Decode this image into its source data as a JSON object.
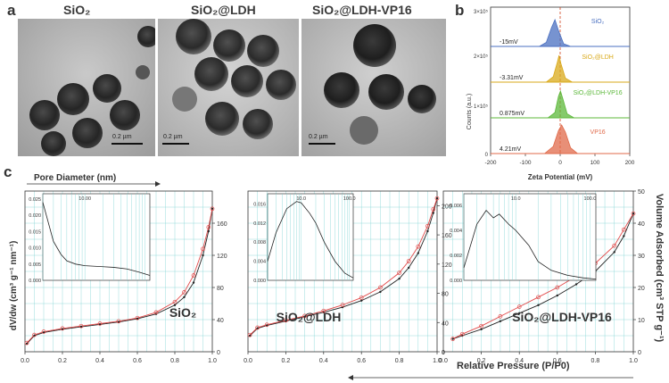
{
  "panels": {
    "a": "a",
    "b": "b",
    "c": "c"
  },
  "tem": [
    {
      "title": "SiO₂",
      "scale": "0.2 µm"
    },
    {
      "title": "SiO₂@LDH",
      "scale": "0.2 µm"
    },
    {
      "title": "SiO₂@LDH-VP16",
      "scale": "0.2 µm"
    }
  ],
  "zeta": {
    "ylabel": "Counts (a.u.)",
    "xlabel": "Zeta Potential (mV)",
    "yticks": [
      "3×10⁵",
      "2×10⁵",
      "1×10⁵",
      "0"
    ],
    "xticks": [
      "-200",
      "-100",
      "0",
      "100",
      "200"
    ]
  },
  "colors": {
    "sio2": "#4a6fc0",
    "ldh": "#d9a91a",
    "vp16ldh": "#5cb83a",
    "vp16": "#e06a4a",
    "grid": "#7ed3d3",
    "ads": "#222222",
    "des": "#e24a4a"
  },
  "bet_labels": {
    "pore_diameter": "Pore Diameter (nm)",
    "dvdw": "dV/dw (cm³ g⁻¹ nm⁻¹)",
    "volume_adsorbed": "Volume Adsorbed (cm³ STP g⁻¹)",
    "relative_pressure": "Relative Pressure (P/P0)"
  },
  "bet": [
    {
      "name": "SiO₂",
      "inset_yticks": [
        "0.025",
        "0.020",
        "0.015",
        "0.010",
        "0.005",
        "0.000"
      ],
      "inset_xtick": [
        "10.00"
      ],
      "right_ticks": [
        "0",
        "40",
        "80",
        "120",
        "160"
      ],
      "xticks": [
        "0.0",
        "0.2",
        "0.4",
        "0.6",
        "0.8",
        "1.0"
      ]
    },
    {
      "name": "SiO₂@LDH",
      "inset_yticks": [
        "0.016",
        "0.012",
        "0.008",
        "0.004",
        "0.000"
      ],
      "inset_xtick": [
        "10.0",
        "100.0"
      ],
      "right_ticks": [
        "0",
        "40",
        "80",
        "120",
        "160",
        "200"
      ],
      "xticks": [
        "0.0",
        "0.2",
        "0.4",
        "0.6",
        "0.8",
        "1.0"
      ]
    },
    {
      "name": "SiO₂@LDH-VP16",
      "inset_yticks": [
        "0.006",
        "0.004",
        "0.002",
        "0.000"
      ],
      "inset_xtick": [
        "10.0",
        "100.0"
      ],
      "right_ticks": [
        "0",
        "10",
        "20",
        "30",
        "40",
        "50"
      ],
      "xticks": [
        "0.0",
        "0.2",
        "0.4",
        "0.6",
        "0.8",
        "1.0"
      ]
    }
  ],
  "chart_data": [
    {
      "type": "area",
      "xlabel": "Zeta Potential (mV)",
      "ylabel": "Counts (a.u.)",
      "xlim": [
        -200,
        200
      ],
      "series": [
        {
          "name": "SiO₂",
          "peak_label": "-15mV",
          "peak": -15,
          "x": [
            -60,
            -40,
            -25,
            -15,
            -5,
            10,
            30
          ],
          "y": [
            0,
            0.15,
            0.7,
            1.0,
            0.6,
            0.1,
            0
          ]
        },
        {
          "name": "SiO₂@LDH",
          "peak_label": "-3.31mV",
          "peak": -3.31,
          "x": [
            -40,
            -20,
            -8,
            -3.31,
            2,
            15,
            35
          ],
          "y": [
            0,
            0.2,
            0.75,
            1.0,
            0.7,
            0.15,
            0
          ]
        },
        {
          "name": "SiO₂@LDH-VP16",
          "peak_label": "0.875mV",
          "peak": 0.875,
          "x": [
            -35,
            -15,
            -5,
            0.875,
            8,
            20,
            40
          ],
          "y": [
            0,
            0.2,
            0.8,
            1.0,
            0.7,
            0.15,
            0
          ]
        },
        {
          "name": "VP16",
          "peak_label": "4.21mV",
          "peak": 4.21,
          "x": [
            -45,
            -20,
            -5,
            4.21,
            15,
            30,
            50
          ],
          "y": [
            0,
            0.25,
            0.8,
            1.0,
            0.75,
            0.2,
            0
          ]
        }
      ]
    },
    {
      "type": "line",
      "title": "SiO₂",
      "xlabel": "Relative Pressure (P/P0)",
      "ylabel": "Volume Adsorbed (cm³ STP g⁻¹)",
      "xlim": [
        0,
        1
      ],
      "ylim": [
        0,
        200
      ],
      "series": [
        {
          "name": "adsorption",
          "x": [
            0.01,
            0.05,
            0.1,
            0.2,
            0.3,
            0.4,
            0.5,
            0.6,
            0.7,
            0.8,
            0.85,
            0.9,
            0.95,
            0.98,
            1.0
          ],
          "y": [
            10,
            20,
            24,
            28,
            31,
            34,
            37,
            41,
            47,
            58,
            68,
            86,
            120,
            150,
            178
          ]
        },
        {
          "name": "desorption",
          "x": [
            0.01,
            0.05,
            0.1,
            0.2,
            0.3,
            0.4,
            0.5,
            0.6,
            0.7,
            0.8,
            0.85,
            0.9,
            0.95,
            0.98,
            1.0
          ],
          "y": [
            11,
            21,
            25,
            29,
            32,
            35,
            38,
            42,
            49,
            62,
            74,
            95,
            128,
            155,
            178
          ]
        }
      ],
      "inset": {
        "xlabel": "Pore Diameter (nm)",
        "ylabel": "dV/dw (cm³ g⁻¹ nm⁻¹)",
        "ylim": [
          0,
          0.025
        ],
        "x": [
          2,
          3,
          4,
          5,
          7,
          10,
          20,
          30,
          50,
          80,
          120
        ],
        "y": [
          0.024,
          0.012,
          0.008,
          0.006,
          0.005,
          0.0045,
          0.0042,
          0.004,
          0.0035,
          0.0025,
          0.0015
        ]
      }
    },
    {
      "type": "line",
      "title": "SiO₂@LDH",
      "xlabel": "Relative Pressure (P/P0)",
      "ylabel": "Volume Adsorbed (cm³ STP g⁻¹)",
      "xlim": [
        0,
        1
      ],
      "ylim": [
        0,
        220
      ],
      "series": [
        {
          "name": "adsorption",
          "x": [
            0.01,
            0.05,
            0.1,
            0.2,
            0.3,
            0.4,
            0.5,
            0.6,
            0.7,
            0.8,
            0.85,
            0.9,
            0.95,
            0.98,
            1.0
          ],
          "y": [
            22,
            32,
            36,
            42,
            48,
            54,
            61,
            70,
            82,
            100,
            115,
            135,
            165,
            190,
            210
          ]
        },
        {
          "name": "desorption",
          "x": [
            0.01,
            0.05,
            0.1,
            0.2,
            0.3,
            0.4,
            0.5,
            0.6,
            0.7,
            0.8,
            0.85,
            0.9,
            0.95,
            0.98,
            1.0
          ],
          "y": [
            23,
            33,
            37,
            43,
            49,
            56,
            64,
            74,
            88,
            108,
            124,
            144,
            172,
            195,
            210
          ]
        }
      ],
      "inset": {
        "xlabel": "Pore Diameter (nm)",
        "ylabel": "dV/dw (cm³ g⁻¹ nm⁻¹)",
        "ylim": [
          0,
          0.017
        ],
        "x": [
          2,
          3,
          5,
          8,
          10,
          15,
          20,
          30,
          50,
          80,
          120
        ],
        "y": [
          0.004,
          0.01,
          0.015,
          0.0165,
          0.0162,
          0.014,
          0.012,
          0.008,
          0.004,
          0.0015,
          0.0005
        ]
      }
    },
    {
      "type": "line",
      "title": "SiO₂@LDH-VP16",
      "xlabel": "Relative Pressure (P/P0)",
      "ylabel": "Volume Adsorbed (cm³ STP g⁻¹)",
      "xlim": [
        0,
        1
      ],
      "ylim": [
        0,
        50
      ],
      "series": [
        {
          "name": "adsorption",
          "x": [
            0.05,
            0.1,
            0.2,
            0.3,
            0.4,
            0.5,
            0.6,
            0.7,
            0.8,
            0.9,
            0.95,
            1.0
          ],
          "y": [
            4,
            5,
            7,
            9.5,
            12,
            14.5,
            17.5,
            21,
            25,
            31,
            36,
            43
          ]
        },
        {
          "name": "desorption",
          "x": [
            0.05,
            0.1,
            0.2,
            0.3,
            0.4,
            0.5,
            0.6,
            0.7,
            0.8,
            0.9,
            0.95,
            1.0
          ],
          "y": [
            4,
            5.5,
            8,
            11,
            14,
            17,
            20,
            23.5,
            27.5,
            33,
            38,
            43
          ]
        }
      ],
      "inset": {
        "xlabel": "Pore Diameter (nm)",
        "ylabel": "dV/dw (cm³ g⁻¹ nm⁻¹)",
        "ylim": [
          0,
          0.0065
        ],
        "x": [
          2,
          3,
          4,
          5,
          6,
          8,
          10,
          15,
          20,
          30,
          50,
          80,
          120
        ],
        "y": [
          0.001,
          0.0045,
          0.0056,
          0.005,
          0.0053,
          0.0045,
          0.004,
          0.0028,
          0.0015,
          0.0008,
          0.0004,
          0.0002,
          0.0001
        ]
      }
    }
  ]
}
